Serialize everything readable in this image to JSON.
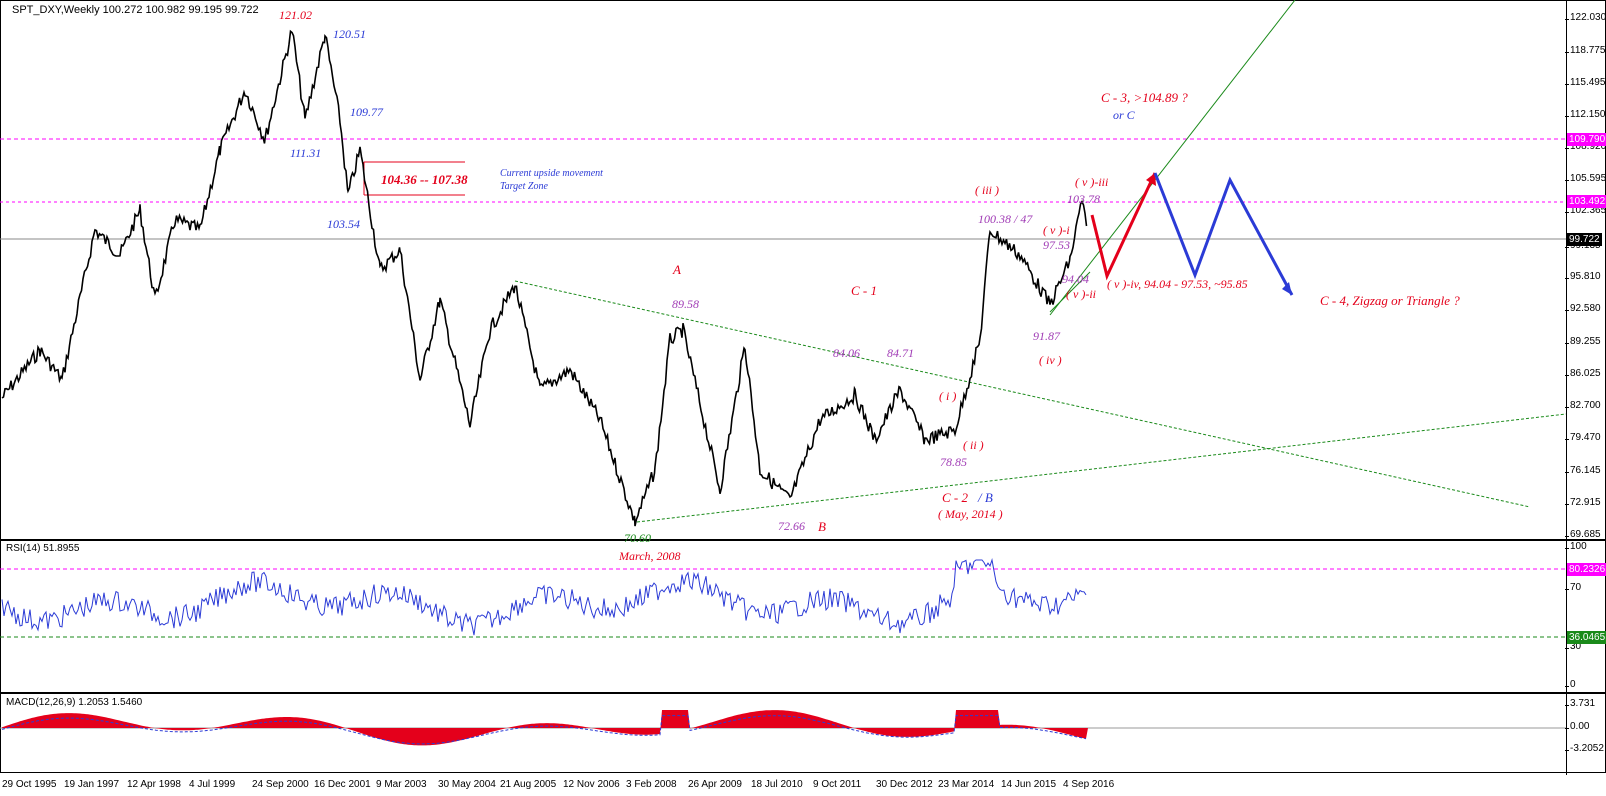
{
  "main_chart": {
    "title": "SPT_DXY,Weekly  100.272 100.982 99.195 99.722",
    "y_ticks": [
      "122.030",
      "118.775",
      "115.495",
      "112.150",
      "108.920",
      "105.595",
      "102.365",
      "99.135",
      "95.810",
      "92.580",
      "89.255",
      "86.025",
      "82.700",
      "79.470",
      "76.145",
      "72.915",
      "69.685"
    ],
    "price_tags": [
      {
        "label": "109.790",
        "bg": "#ff00ff",
        "fg": "#ffffff"
      },
      {
        "label": "103.492",
        "bg": "#ff00ff",
        "fg": "#ffffff"
      },
      {
        "label": "99.722",
        "bg": "#000000",
        "fg": "#ffffff"
      }
    ],
    "x_ticks": [
      "29 Oct 1995",
      "19 Jan 1997",
      "12 Apr 1998",
      "4 Jul 1999",
      "24 Sep 2000",
      "16 Dec 2001",
      "9 Mar 2003",
      "30 May 2004",
      "21 Aug 2005",
      "12 Nov 2006",
      "3 Feb 2008",
      "26 Apr 2009",
      "18 Jul 2010",
      "9 Oct 2011",
      "30 Dec 2012",
      "23 Mar 2014",
      "14 Jun 2015",
      "4 Sep 2016"
    ],
    "annotations": {
      "p121": "121.02",
      "p120": "120.51",
      "p109": "109.77",
      "p111": "111.31",
      "p103": "103.54",
      "zone": "104.36 -- 107.38",
      "current_line1": "Current upside movement",
      "current_line2": "Target Zone",
      "A": "A",
      "p89": "89.58",
      "C1": "C - 1",
      "p84a": "84.06",
      "p84b": "84.71",
      "p70": "70.60",
      "march": "March, 2008",
      "p72": "72.66",
      "B": "B",
      "C2": "C - 2",
      "C2B": "/ B",
      "may": "( May, 2014 )",
      "i": "( i )",
      "ii": "( ii )",
      "p78": "78.85",
      "iii": "( iii )",
      "p100": "100.38 / 47",
      "vi": "( v )-i",
      "p97": "97.53",
      "p94": "94.04",
      "vii": "( v )-ii",
      "p91": "91.87",
      "iv": "( iv )",
      "viii": "( v )-iii",
      "p103b": "103.78",
      "C3": "C - 3,    >104.89 ?",
      "orC": "or C",
      "viv": "( v )-iv,  94.04 - 97.53,  ~95.85",
      "C4": "C - 4,   Zigzag or Triangle ?"
    }
  },
  "rsi_panel": {
    "title": "RSI(14) 51.8955",
    "y_ticks": [
      "100",
      "70",
      "30",
      "0"
    ],
    "tags": [
      {
        "label": "80.2326",
        "bg": "#ff00ff",
        "fg": "#ffffff"
      },
      {
        "label": "36.0465",
        "bg": "#1a8a1a",
        "fg": "#ffffff"
      }
    ]
  },
  "macd_panel": {
    "title": "MACD(12,26,9) 1.2053 1.5460",
    "y_ticks": [
      "3.731",
      "0.00",
      "-3.2052"
    ]
  },
  "colors": {
    "price": "#000000",
    "rsi": "#2b3bd6",
    "macd_hist": "#e4001b",
    "macd_signal": "#2b3bd6",
    "magenta_level": "#ff00ff",
    "trend_green": "#1a8a1a"
  }
}
